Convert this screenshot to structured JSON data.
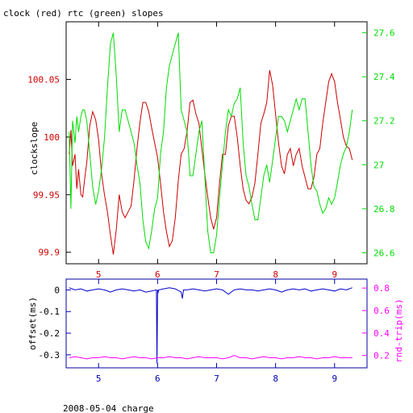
{
  "title": "clock (red) rtc (green) slopes",
  "footer": "2008-05-04 charge",
  "colors": {
    "clock": "#cc0000",
    "rtc": "#00dd00",
    "offset": "#0000cc",
    "rndtrip": "#ff00ff",
    "axis_black": "#000000",
    "axis_blue": "#0000aa"
  },
  "chart_data": [
    {
      "type": "line",
      "title": "clock (red) rtc (green) slopes",
      "ylabel": "clockslope",
      "y2label": "",
      "xlim": [
        4.45,
        9.55
      ],
      "ylim": [
        99.89,
        100.1
      ],
      "y2lim": [
        26.55,
        27.65
      ],
      "xticks": [
        5,
        6,
        7,
        8,
        9
      ],
      "yticks": [
        99.9,
        99.95,
        100,
        100.05
      ],
      "ytick_labels": [
        "99.9",
        "99.95",
        "100",
        "100.05"
      ],
      "y2ticks": [
        26.6,
        26.8,
        27,
        27.2,
        27.4,
        27.6
      ],
      "y2tick_labels": [
        "26.6",
        "26.8",
        "27",
        "27.2",
        "27.4",
        "27.6"
      ],
      "grid": false,
      "series": [
        {
          "name": "clock (red)",
          "axis": "left",
          "x": [
            4.5,
            4.53,
            4.56,
            4.6,
            4.63,
            4.66,
            4.7,
            4.73,
            4.76,
            4.8,
            4.85,
            4.9,
            4.95,
            5.0,
            5.05,
            5.1,
            5.15,
            5.2,
            5.25,
            5.3,
            5.35,
            5.4,
            5.45,
            5.5,
            5.55,
            5.6,
            5.65,
            5.7,
            5.75,
            5.8,
            5.85,
            5.9,
            5.95,
            6.0,
            6.05,
            6.1,
            6.15,
            6.2,
            6.25,
            6.3,
            6.35,
            6.4,
            6.45,
            6.5,
            6.55,
            6.6,
            6.65,
            6.7,
            6.75,
            6.8,
            6.85,
            6.9,
            6.95,
            7.0,
            7.05,
            7.1,
            7.15,
            7.2,
            7.25,
            7.3,
            7.35,
            7.4,
            7.45,
            7.5,
            7.55,
            7.6,
            7.65,
            7.7,
            7.75,
            7.8,
            7.85,
            7.9,
            7.95,
            8.0,
            8.05,
            8.1,
            8.15,
            8.2,
            8.25,
            8.3,
            8.35,
            8.4,
            8.45,
            8.5,
            8.55,
            8.6,
            8.65,
            8.7,
            8.75,
            8.8,
            8.85,
            8.9,
            8.95,
            9.0,
            9.05,
            9.1,
            9.15,
            9.2,
            9.25,
            9.3
          ],
          "values": [
            99.985,
            100.006,
            99.975,
            99.985,
            99.955,
            99.972,
            99.95,
            99.948,
            99.962,
            99.978,
            100.01,
            100.022,
            100.015,
            99.998,
            99.968,
            99.95,
            99.935,
            99.915,
            99.898,
            99.92,
            99.95,
            99.935,
            99.93,
            99.935,
            99.94,
            99.962,
            99.99,
            100.012,
            100.03,
            100.03,
            100.022,
            100.008,
            99.995,
            99.982,
            99.96,
            99.935,
            99.918,
            99.905,
            99.91,
            99.93,
            99.962,
            99.985,
            99.99,
            100.005,
            100.03,
            100.032,
            100.02,
            100.012,
            99.99,
            99.968,
            99.948,
            99.93,
            99.92,
            99.93,
            99.96,
            99.985,
            99.985,
            100.01,
            100.018,
            100.018,
            100.0,
            99.975,
            99.955,
            99.945,
            99.942,
            99.948,
            99.96,
            99.985,
            100.012,
            100.02,
            100.03,
            100.058,
            100.045,
            100.02,
            99.995,
            99.975,
            99.968,
            99.985,
            99.99,
            99.975,
            99.985,
            99.99,
            99.975,
            99.965,
            99.955,
            99.955,
            99.965,
            99.985,
            99.99,
            100.012,
            100.03,
            100.048,
            100.055,
            100.048,
            100.03,
            100.015,
            100.0,
            99.992,
            99.99,
            99.98
          ]
        },
        {
          "name": "rtc (green)",
          "axis": "right",
          "x": [
            4.5,
            4.53,
            4.56,
            4.6,
            4.63,
            4.66,
            4.7,
            4.73,
            4.76,
            4.8,
            4.85,
            4.9,
            4.95,
            5.0,
            5.05,
            5.1,
            5.15,
            5.2,
            5.25,
            5.3,
            5.35,
            5.4,
            5.45,
            5.5,
            5.55,
            5.6,
            5.65,
            5.7,
            5.75,
            5.8,
            5.85,
            5.9,
            5.95,
            6.0,
            6.05,
            6.1,
            6.15,
            6.2,
            6.25,
            6.3,
            6.35,
            6.4,
            6.45,
            6.5,
            6.55,
            6.6,
            6.65,
            6.7,
            6.75,
            6.8,
            6.85,
            6.9,
            6.95,
            7.0,
            7.05,
            7.1,
            7.15,
            7.2,
            7.25,
            7.3,
            7.35,
            7.4,
            7.45,
            7.5,
            7.55,
            7.6,
            7.65,
            7.7,
            7.75,
            7.8,
            7.85,
            7.9,
            7.95,
            8.0,
            8.05,
            8.1,
            8.15,
            8.2,
            8.25,
            8.3,
            8.35,
            8.4,
            8.45,
            8.5,
            8.55,
            8.6,
            8.65,
            8.7,
            8.75,
            8.8,
            8.85,
            8.9,
            8.95,
            9.0,
            9.05,
            9.1,
            9.15,
            9.2,
            9.25,
            9.3
          ],
          "values": [
            27.15,
            26.8,
            27.2,
            27.1,
            27.22,
            27.15,
            27.22,
            27.25,
            27.25,
            27.2,
            27.05,
            26.9,
            26.82,
            26.88,
            26.98,
            27.12,
            27.35,
            27.55,
            27.6,
            27.4,
            27.15,
            27.25,
            27.25,
            27.2,
            27.15,
            27.1,
            27.0,
            26.92,
            26.75,
            26.65,
            26.62,
            26.7,
            26.8,
            26.85,
            27.05,
            27.15,
            27.35,
            27.45,
            27.5,
            27.55,
            27.6,
            27.25,
            27.2,
            27.15,
            26.95,
            26.95,
            27.05,
            27.15,
            27.2,
            26.95,
            26.7,
            26.6,
            26.6,
            26.68,
            26.85,
            27.0,
            27.15,
            27.25,
            27.22,
            27.28,
            27.3,
            27.35,
            27.1,
            26.95,
            26.9,
            26.82,
            26.75,
            26.75,
            26.85,
            26.95,
            27.0,
            26.92,
            27.02,
            27.12,
            27.22,
            27.22,
            27.2,
            27.15,
            27.2,
            27.25,
            27.3,
            27.25,
            27.3,
            27.3,
            27.15,
            27.0,
            26.9,
            26.88,
            26.82,
            26.78,
            26.8,
            26.85,
            26.82,
            26.85,
            26.92,
            27.0,
            27.05,
            27.08,
            27.15,
            27.25
          ]
        }
      ]
    },
    {
      "type": "line",
      "title": "",
      "xlabel": "2008-05-04 charge",
      "ylabel": "offset(ms)",
      "y2label": "rnd-trip(ms)",
      "xlim": [
        4.45,
        9.55
      ],
      "ylim": [
        -0.36,
        0.05
      ],
      "y2lim": [
        0.09,
        0.88
      ],
      "xticks": [
        5,
        6,
        7,
        8,
        9
      ],
      "yticks": [
        0,
        -0.1,
        -0.2,
        -0.3
      ],
      "ytick_labels": [
        "0",
        "-0.1",
        "-0.2",
        "-0.3"
      ],
      "y2ticks": [
        0.2,
        0.4,
        0.6,
        0.8
      ],
      "y2tick_labels": [
        "0.2",
        "0.4",
        "0.6",
        "0.8"
      ],
      "grid": false,
      "series": [
        {
          "name": "offset(ms)",
          "axis": "left",
          "x": [
            4.5,
            4.6,
            4.7,
            4.8,
            4.9,
            5.0,
            5.1,
            5.2,
            5.3,
            5.4,
            5.5,
            5.6,
            5.7,
            5.8,
            5.9,
            5.98,
            5.99,
            6.0,
            6.01,
            6.02,
            6.1,
            6.2,
            6.3,
            6.4,
            6.42,
            6.44,
            6.5,
            6.6,
            6.7,
            6.8,
            6.9,
            7.0,
            7.1,
            7.2,
            7.3,
            7.4,
            7.5,
            7.6,
            7.7,
            7.8,
            7.9,
            8.0,
            8.1,
            8.2,
            8.3,
            8.4,
            8.5,
            8.6,
            8.7,
            8.8,
            8.9,
            9.0,
            9.1,
            9.2,
            9.3
          ],
          "values": [
            0.01,
            0.0,
            0.005,
            -0.005,
            0.0,
            0.005,
            0.0,
            -0.01,
            0.0,
            0.005,
            0.0,
            -0.005,
            0.0,
            -0.01,
            -0.005,
            0.0,
            -0.34,
            0.0,
            -0.01,
            0.0,
            0.005,
            0.01,
            0.005,
            -0.01,
            -0.04,
            0.0,
            0.0,
            0.005,
            0.0,
            -0.005,
            0.0,
            0.005,
            0.0,
            -0.02,
            0.0,
            0.005,
            0.0,
            0.0,
            -0.005,
            0.0,
            0.005,
            0.0,
            -0.01,
            0.0,
            0.005,
            0.0,
            0.005,
            -0.005,
            0.0,
            0.005,
            0.0,
            -0.005,
            0.005,
            0.0,
            0.01
          ]
        },
        {
          "name": "rnd-trip(ms)",
          "axis": "right",
          "x": [
            4.5,
            4.6,
            4.7,
            4.8,
            4.9,
            5.0,
            5.1,
            5.2,
            5.3,
            5.4,
            5.5,
            5.6,
            5.7,
            5.8,
            5.9,
            6.0,
            6.1,
            6.2,
            6.3,
            6.4,
            6.5,
            6.6,
            6.7,
            6.8,
            6.9,
            7.0,
            7.1,
            7.2,
            7.3,
            7.4,
            7.5,
            7.6,
            7.7,
            7.8,
            7.9,
            8.0,
            8.1,
            8.2,
            8.3,
            8.4,
            8.5,
            8.6,
            8.7,
            8.8,
            8.9,
            9.0,
            9.1,
            9.2,
            9.3
          ],
          "values": [
            0.18,
            0.19,
            0.18,
            0.17,
            0.18,
            0.18,
            0.19,
            0.18,
            0.18,
            0.17,
            0.18,
            0.19,
            0.18,
            0.18,
            0.17,
            0.18,
            0.18,
            0.19,
            0.18,
            0.18,
            0.17,
            0.18,
            0.19,
            0.18,
            0.18,
            0.18,
            0.17,
            0.18,
            0.2,
            0.18,
            0.18,
            0.17,
            0.18,
            0.19,
            0.18,
            0.18,
            0.17,
            0.18,
            0.18,
            0.19,
            0.18,
            0.18,
            0.17,
            0.18,
            0.18,
            0.19,
            0.18,
            0.18,
            0.18
          ]
        }
      ]
    }
  ]
}
